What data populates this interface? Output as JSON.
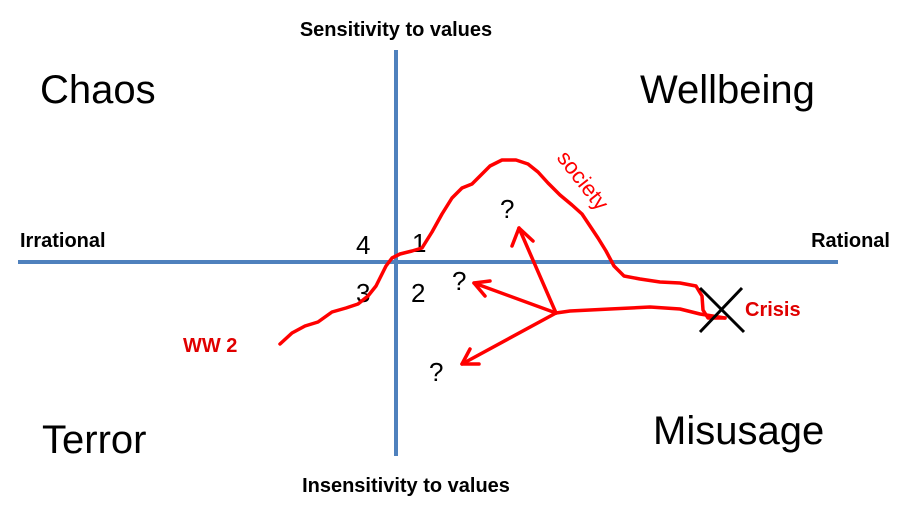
{
  "axes": {
    "top": "Sensitivity to values",
    "bottom": "Insensitivity to values",
    "left": "Irrational",
    "right": "Rational"
  },
  "quadrants": {
    "top_left": "Chaos",
    "top_right": "Wellbeing",
    "bottom_left": "Terror",
    "bottom_right": "Misusage"
  },
  "quadrant_numbers": {
    "q1": "1",
    "q2": "2",
    "q3": "3",
    "q4": "4"
  },
  "annotations": {
    "society": "society",
    "crisis": "Crisis",
    "ww2": "WW 2",
    "question_1": "?",
    "question_2": "?",
    "question_3": "?"
  },
  "colors": {
    "axis": "#4f81bd",
    "curve": "#ff0000",
    "label_red": "#e00000",
    "text": "#000000"
  }
}
